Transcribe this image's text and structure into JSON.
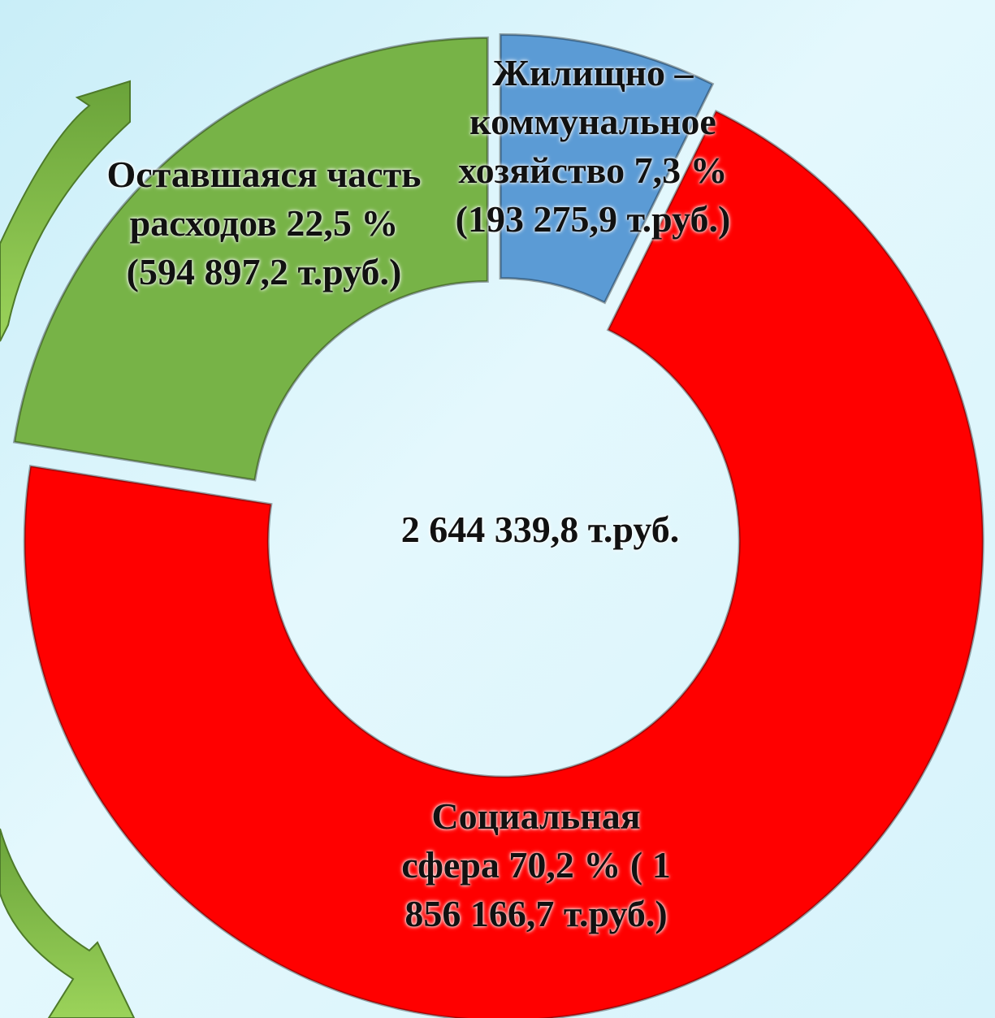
{
  "chart_data": {
    "type": "donut",
    "categories": [
      "Жилищно – коммунальное хозяйство",
      "Социальная сфера",
      "Оставшаяся часть расходов"
    ],
    "values": [
      7.3,
      70.2,
      22.5
    ],
    "value_labels": [
      "7,3 %",
      "70,2 %",
      "22,5 %"
    ],
    "amounts": [
      193275.9,
      1856166.7,
      594897.2
    ],
    "amount_labels": [
      "(193 275,9 т.руб.)",
      "( 1 856 166,7 т.руб.)",
      "(594 897,2 т.руб.)"
    ],
    "colors": [
      "#5b9bd5",
      "#ff0000",
      "#77b347"
    ],
    "center_label": "2 644 339,8 т.руб."
  }
}
